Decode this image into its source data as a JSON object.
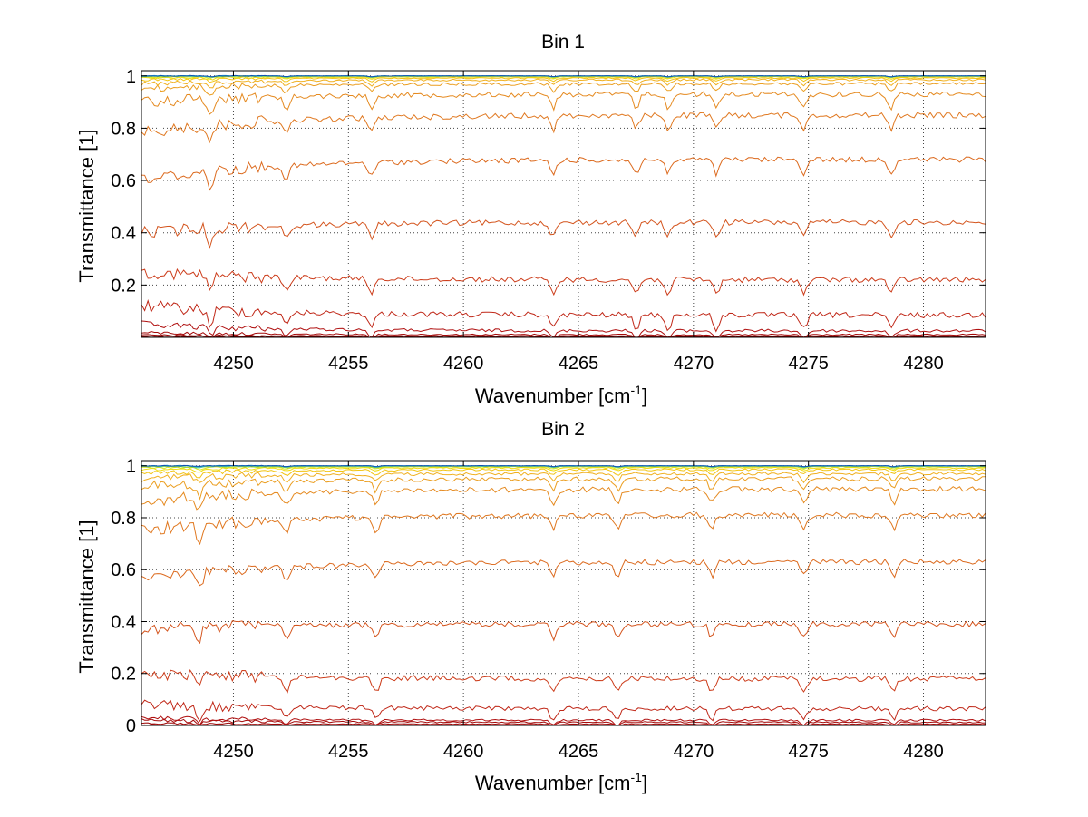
{
  "chart_data": [
    {
      "type": "line",
      "title": "Bin 1",
      "xlabel": "Wavenumber [cm",
      "xlabel_sup": "-1",
      "xlabel_close": "]",
      "ylabel": "Transmittance [1]",
      "xlim": [
        4246,
        4282.7
      ],
      "ylim": [
        0,
        1.02
      ],
      "xticks": [
        4250,
        4255,
        4260,
        4265,
        4270,
        4275,
        4280
      ],
      "yticks": [
        0.2,
        0.4,
        0.6,
        0.8,
        1
      ],
      "xtick_labels": [
        "4250",
        "4255",
        "4260",
        "4265",
        "4270",
        "4275",
        "4280"
      ],
      "ytick_labels": [
        "0.2",
        "0.4",
        "0.6",
        "0.8",
        "1"
      ],
      "grid": true,
      "absorption_lines": [
        4249,
        4252.3,
        4256,
        4263.9,
        4267.5,
        4268.9,
        4271,
        4274.8,
        4278.6
      ],
      "series": [
        {
          "start": 0.002,
          "end": 0.002,
          "color": "#8b0000"
        },
        {
          "start": 0.008,
          "end": 0.005,
          "color": "#9b0505"
        },
        {
          "start": 0.018,
          "end": 0.01,
          "color": "#a50a0a"
        },
        {
          "start": 0.05,
          "end": 0.025,
          "color": "#b01010"
        },
        {
          "start": 0.12,
          "end": 0.085,
          "color": "#c02818"
        },
        {
          "start": 0.25,
          "end": 0.22,
          "color": "#cc3c1a"
        },
        {
          "start": 0.4,
          "end": 0.44,
          "color": "#d4551e"
        },
        {
          "start": 0.6,
          "end": 0.68,
          "color": "#dc6a1e"
        },
        {
          "start": 0.78,
          "end": 0.85,
          "color": "#e07820"
        },
        {
          "start": 0.9,
          "end": 0.93,
          "color": "#e58a20"
        },
        {
          "start": 0.95,
          "end": 0.97,
          "color": "#eb9e20"
        },
        {
          "start": 0.97,
          "end": 0.985,
          "color": "#f0b020"
        },
        {
          "start": 0.985,
          "end": 0.992,
          "color": "#f2c414"
        },
        {
          "start": 0.992,
          "end": 0.996,
          "color": "#f0dc10"
        },
        {
          "start": 0.996,
          "end": 0.998,
          "color": "#d8e820"
        },
        {
          "start": 0.998,
          "end": 0.999,
          "color": "#9ed838"
        },
        {
          "start": 0.999,
          "end": 0.9995,
          "color": "#50c8a0"
        },
        {
          "start": 1.0,
          "end": 1.0,
          "color": "#20b0d8"
        },
        {
          "start": 1.0,
          "end": 1.0,
          "color": "#1050b0"
        }
      ]
    },
    {
      "type": "line",
      "title": "Bin 2",
      "xlabel": "Wavenumber [cm",
      "xlabel_sup": "-1",
      "xlabel_close": "]",
      "ylabel": "Transmittance [1]",
      "xlim": [
        4246,
        4282.7
      ],
      "ylim": [
        0,
        1.02
      ],
      "xticks": [
        4250,
        4255,
        4260,
        4265,
        4270,
        4275,
        4280
      ],
      "yticks": [
        0,
        0.2,
        0.4,
        0.6,
        0.8,
        1
      ],
      "xtick_labels": [
        "4250",
        "4255",
        "4260",
        "4265",
        "4270",
        "4275",
        "4280"
      ],
      "ytick_labels": [
        "0",
        "0.2",
        "0.4",
        "0.6",
        "0.8",
        "1"
      ],
      "grid": true,
      "absorption_lines": [
        4248.5,
        4252.3,
        4256.2,
        4263.9,
        4266.7,
        4270.8,
        4274.8,
        4278.7
      ],
      "series": [
        {
          "start": 0.002,
          "end": 0.002,
          "color": "#8b0000"
        },
        {
          "start": 0.008,
          "end": 0.005,
          "color": "#9b0505"
        },
        {
          "start": 0.02,
          "end": 0.012,
          "color": "#a50a0a"
        },
        {
          "start": 0.03,
          "end": 0.02,
          "color": "#b01010"
        },
        {
          "start": 0.08,
          "end": 0.065,
          "color": "#c02818"
        },
        {
          "start": 0.2,
          "end": 0.18,
          "color": "#cc3c1a"
        },
        {
          "start": 0.37,
          "end": 0.39,
          "color": "#d4551e"
        },
        {
          "start": 0.56,
          "end": 0.63,
          "color": "#dc6a1e"
        },
        {
          "start": 0.75,
          "end": 0.81,
          "color": "#e07820"
        },
        {
          "start": 0.86,
          "end": 0.91,
          "color": "#e58a20"
        },
        {
          "start": 0.92,
          "end": 0.95,
          "color": "#eb9e20"
        },
        {
          "start": 0.95,
          "end": 0.97,
          "color": "#f0b020"
        },
        {
          "start": 0.97,
          "end": 0.985,
          "color": "#f2c414"
        },
        {
          "start": 0.985,
          "end": 0.992,
          "color": "#f0dc10"
        },
        {
          "start": 0.992,
          "end": 0.996,
          "color": "#d8e820"
        },
        {
          "start": 0.996,
          "end": 0.998,
          "color": "#9ed838"
        },
        {
          "start": 0.998,
          "end": 0.999,
          "color": "#50c8a0"
        },
        {
          "start": 1.0,
          "end": 1.0,
          "color": "#20b0d8"
        },
        {
          "start": 1.0,
          "end": 1.0,
          "color": "#1050b0"
        }
      ]
    }
  ]
}
